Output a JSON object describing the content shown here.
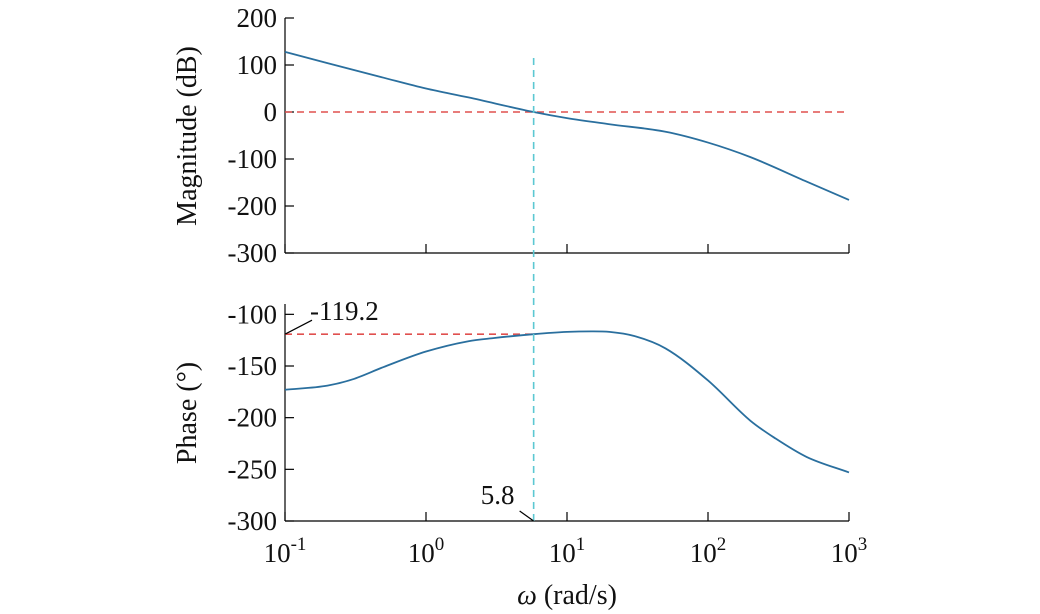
{
  "chart_data": {
    "type": "line",
    "x_scale": "log",
    "xlim": [
      0.1,
      1000
    ],
    "xticks": [
      {
        "base": "10",
        "exp": "-1",
        "value": 0.1
      },
      {
        "base": "10",
        "exp": "0",
        "value": 1
      },
      {
        "base": "10",
        "exp": "1",
        "value": 10
      },
      {
        "base": "10",
        "exp": "2",
        "value": 100
      },
      {
        "base": "10",
        "exp": "3",
        "value": 1000
      }
    ],
    "xlabel": {
      "symbol": "ω",
      "rest": " (rad/s)"
    },
    "panels": [
      {
        "name": "magnitude",
        "ylabel": "Magnitude (dB)",
        "ylim": [
          -300,
          200
        ],
        "yticks": [
          {
            "value": 200,
            "label": "200"
          },
          {
            "value": 100,
            "label": "100"
          },
          {
            "value": 0,
            "label": "0"
          },
          {
            "value": -100,
            "label": "-100"
          },
          {
            "value": -200,
            "label": "-200"
          },
          {
            "value": -300,
            "label": "-300"
          }
        ],
        "series": [
          {
            "x": [
              0.1,
              0.2,
              0.5,
              1,
              2,
              5.8,
              10,
              20,
              50,
              100,
              200,
              500,
              1000
            ],
            "y": [
              128,
              104,
              73,
              50,
              31,
              0,
              -13,
              -26,
              -42,
              -65,
              -96,
              -148,
              -187
            ]
          }
        ],
        "reference_y": 0
      },
      {
        "name": "phase",
        "ylabel": "Phase (°)",
        "ylim": [
          -300,
          -90
        ],
        "yticks": [
          {
            "value": -100,
            "label": "-100"
          },
          {
            "value": -150,
            "label": "-150"
          },
          {
            "value": -200,
            "label": "-200"
          },
          {
            "value": -250,
            "label": "-250"
          },
          {
            "value": -300,
            "label": "-300"
          }
        ],
        "series": [
          {
            "x": [
              0.1,
              0.2,
              0.3,
              0.5,
              1,
              2,
              3,
              5.8,
              10,
              15,
              20,
              30,
              50,
              100,
              200,
              300,
              500,
              1000
            ],
            "y": [
              -173,
              -169,
              -163,
              -151,
              -136,
              -126,
              -123,
              -119.2,
              -117,
              -116.5,
              -117,
              -121,
              -133,
              -164,
              -203,
              -220,
              -238,
              -253
            ]
          }
        ],
        "reference_y": -119.2
      }
    ],
    "marker_x": 5.8,
    "annotations": {
      "phase_value": "-119.2",
      "crossover_freq": "5.8"
    }
  }
}
